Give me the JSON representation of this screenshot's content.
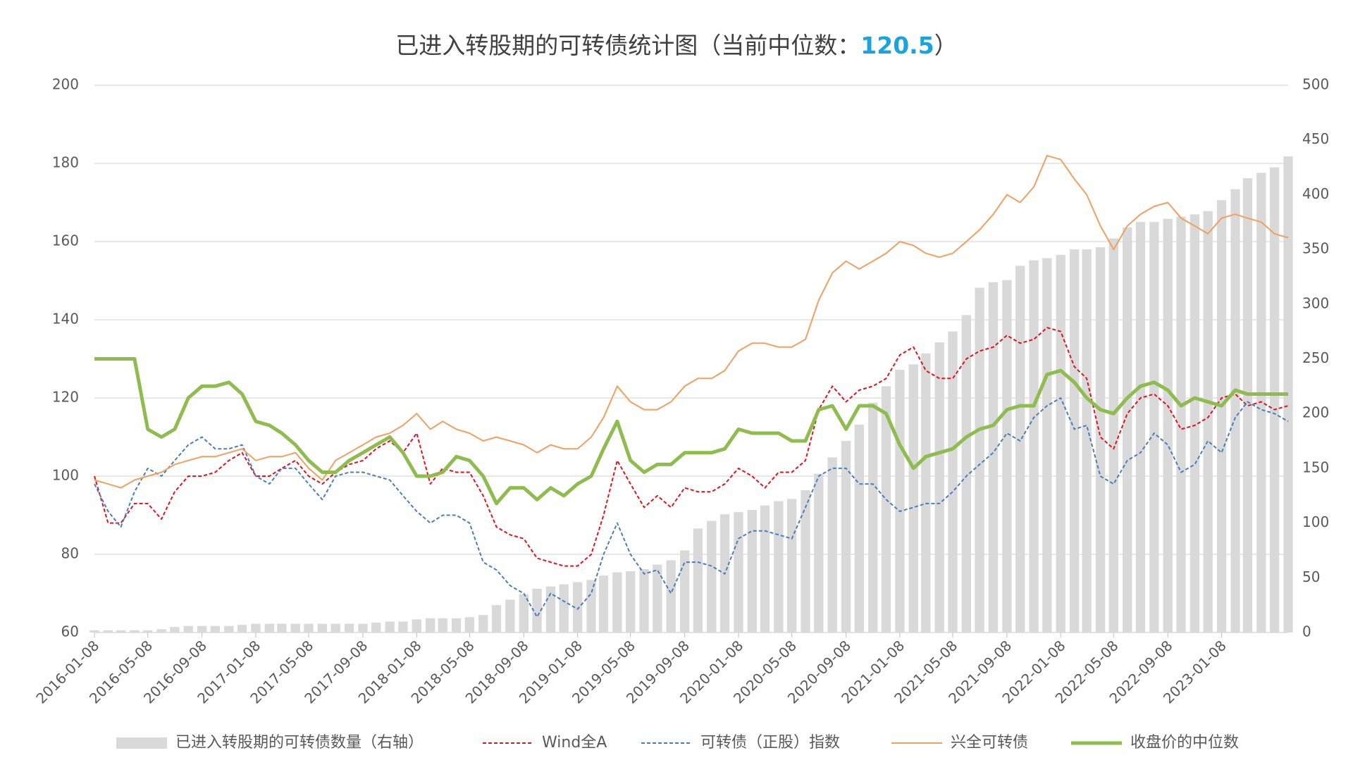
{
  "chart_data": {
    "type": "line",
    "title": "已进入转股期的可转债统计图（当前中位数：",
    "title_value": 120.5,
    "title_end": "）",
    "title_value_color": "#1aa3e0",
    "x": [
      "2016-01-08",
      "2016-02-08",
      "2016-03-08",
      "2016-04-08",
      "2016-05-08",
      "2016-06-08",
      "2016-07-08",
      "2016-08-08",
      "2016-09-08",
      "2016-10-08",
      "2016-11-08",
      "2016-12-08",
      "2017-01-08",
      "2017-02-08",
      "2017-03-08",
      "2017-04-08",
      "2017-05-08",
      "2017-06-08",
      "2017-07-08",
      "2017-08-08",
      "2017-09-08",
      "2017-10-08",
      "2017-11-08",
      "2017-12-08",
      "2018-01-08",
      "2018-02-08",
      "2018-03-08",
      "2018-04-08",
      "2018-05-08",
      "2018-06-08",
      "2018-07-08",
      "2018-08-08",
      "2018-09-08",
      "2018-10-08",
      "2018-11-08",
      "2018-12-08",
      "2019-01-08",
      "2019-02-08",
      "2019-03-08",
      "2019-04-08",
      "2019-05-08",
      "2019-06-08",
      "2019-07-08",
      "2019-08-08",
      "2019-09-08",
      "2019-10-08",
      "2019-11-08",
      "2019-12-08",
      "2020-01-08",
      "2020-02-08",
      "2020-03-08",
      "2020-04-08",
      "2020-05-08",
      "2020-06-08",
      "2020-07-08",
      "2020-08-08",
      "2020-09-08",
      "2020-10-08",
      "2020-11-08",
      "2020-12-08",
      "2021-01-08",
      "2021-02-08",
      "2021-03-08",
      "2021-04-08",
      "2021-05-08",
      "2021-06-08",
      "2021-07-08",
      "2021-08-08",
      "2021-09-08",
      "2021-10-08",
      "2021-11-08",
      "2021-12-08",
      "2022-01-08",
      "2022-02-08",
      "2022-03-08",
      "2022-04-08",
      "2022-05-08",
      "2022-06-08",
      "2022-07-08",
      "2022-08-08",
      "2022-09-08",
      "2022-10-08",
      "2022-11-08",
      "2022-12-08",
      "2023-01-08",
      "2023-02-08",
      "2023-03-08",
      "2023-04-08",
      "2023-05-08",
      "2023-06-08"
    ],
    "xlim": [
      "2016-01-08",
      "2023-06-08"
    ],
    "xticks": [
      "2016-01-08",
      "2016-05-08",
      "2016-09-08",
      "2017-01-08",
      "2017-05-08",
      "2017-09-08",
      "2018-01-08",
      "2018-05-08",
      "2018-09-08",
      "2019-01-08",
      "2019-05-08",
      "2019-09-08",
      "2020-01-08",
      "2020-05-08",
      "2020-09-08",
      "2021-01-08",
      "2021-05-08",
      "2021-09-08",
      "2022-01-08",
      "2022-05-08",
      "2022-09-08",
      "2023-01-08"
    ],
    "ylim": [
      60,
      200
    ],
    "yticks": [
      60,
      80,
      100,
      120,
      140,
      160,
      180,
      200
    ],
    "y2lim": [
      0,
      500
    ],
    "y2ticks": [
      0,
      50,
      100,
      150,
      200,
      250,
      300,
      350,
      400,
      450,
      500
    ],
    "grid": true,
    "legend": "bottom",
    "series": [
      {
        "name": "已进入转股期的可转债数量（右轴）",
        "type": "bar",
        "axis": "y2",
        "color": "#d9d9d9",
        "values": [
          2,
          2,
          2,
          2,
          2,
          3,
          5,
          6,
          6,
          6,
          6,
          7,
          8,
          8,
          8,
          8,
          8,
          8,
          8,
          8,
          8,
          9,
          10,
          10,
          12,
          13,
          13,
          13,
          14,
          16,
          25,
          30,
          35,
          40,
          42,
          44,
          46,
          48,
          52,
          55,
          56,
          58,
          62,
          66,
          75,
          95,
          102,
          108,
          110,
          112,
          116,
          120,
          122,
          130,
          145,
          160,
          175,
          190,
          210,
          225,
          240,
          245,
          255,
          265,
          275,
          290,
          315,
          320,
          322,
          335,
          340,
          342,
          345,
          350,
          350,
          352,
          360,
          370,
          375,
          375,
          378,
          380,
          382,
          385,
          395,
          405,
          415,
          420,
          425,
          435
        ]
      },
      {
        "name": "Wind全A",
        "type": "line",
        "color": "#e0141e",
        "dashed": true,
        "line_width": 2,
        "values": [
          100,
          88,
          88,
          93,
          93,
          89,
          96,
          100,
          100,
          101,
          104,
          106,
          100,
          100,
          102,
          104,
          100,
          98,
          101,
          103,
          104,
          107,
          109,
          106,
          111,
          98,
          102,
          101,
          101,
          95,
          87,
          85,
          84,
          79,
          78,
          77,
          77,
          80,
          90,
          104,
          98,
          92,
          95,
          92,
          97,
          96,
          96,
          98,
          102,
          100,
          97,
          101,
          101,
          104,
          117,
          123,
          119,
          122,
          123,
          125,
          131,
          133,
          127,
          125,
          125,
          130,
          132,
          133,
          136,
          134,
          135,
          138,
          137,
          128,
          125,
          110,
          107,
          116,
          120,
          121,
          118,
          112,
          113,
          115,
          120,
          121,
          118,
          119,
          117,
          118
        ]
      },
      {
        "name": "可转债（正股）指数",
        "type": "line",
        "color": "#4a7ebb",
        "dashed": true,
        "line_width": 2,
        "values": [
          98,
          91,
          87,
          96,
          102,
          100,
          104,
          108,
          110,
          107,
          107,
          108,
          100,
          98,
          102,
          102,
          98,
          94,
          100,
          101,
          101,
          100,
          99,
          95,
          91,
          88,
          90,
          90,
          88,
          78,
          76,
          72,
          70,
          64,
          70,
          68,
          66,
          70,
          80,
          88,
          80,
          75,
          76,
          70,
          78,
          78,
          77,
          75,
          84,
          86,
          86,
          85,
          84,
          92,
          100,
          102,
          102,
          98,
          98,
          94,
          91,
          92,
          93,
          93,
          96,
          100,
          103,
          106,
          111,
          109,
          115,
          118,
          120,
          112,
          113,
          100,
          98,
          104,
          106,
          111,
          108,
          101,
          103,
          109,
          106,
          115,
          119,
          117,
          116,
          114
        ]
      },
      {
        "name": "兴全可转债",
        "type": "line",
        "color": "#f0a060",
        "dashed": false,
        "line_width": 2,
        "values": [
          99,
          98,
          97,
          99,
          100,
          101,
          103,
          104,
          105,
          105,
          106,
          107,
          104,
          105,
          105,
          106,
          102,
          99,
          104,
          106,
          108,
          110,
          111,
          113,
          116,
          112,
          114,
          112,
          111,
          109,
          110,
          109,
          108,
          106,
          108,
          107,
          107,
          110,
          115,
          123,
          119,
          117,
          117,
          119,
          123,
          125,
          125,
          127,
          132,
          134,
          134,
          133,
          133,
          135,
          145,
          152,
          155,
          153,
          155,
          157,
          160,
          159,
          157,
          156,
          157,
          160,
          163,
          167,
          172,
          170,
          174,
          182,
          181,
          176,
          172,
          164,
          158,
          164,
          167,
          169,
          170,
          166,
          164,
          162,
          166,
          167,
          166,
          165,
          162,
          161
        ]
      },
      {
        "name": "收盘价的中位数",
        "type": "line",
        "color": "#8fbc4f",
        "dashed": false,
        "line_width": 5,
        "values": [
          130,
          130,
          130,
          130,
          112,
          110,
          112,
          120,
          123,
          123,
          124,
          121,
          114,
          113,
          111,
          108,
          104,
          101,
          101,
          104,
          106,
          108,
          110,
          106,
          100,
          100,
          101,
          105,
          104,
          100,
          93,
          97,
          97,
          94,
          97,
          95,
          98,
          100,
          107,
          114,
          104,
          101,
          103,
          103,
          106,
          106,
          106,
          107,
          112,
          111,
          111,
          111,
          109,
          109,
          117,
          118,
          112,
          118,
          118,
          116,
          108,
          102,
          105,
          106,
          107,
          110,
          112,
          113,
          117,
          118,
          118,
          126,
          127,
          124,
          120,
          117,
          116,
          120,
          123,
          124,
          122,
          118,
          120,
          119,
          118,
          122,
          121,
          121,
          121,
          121
        ]
      }
    ]
  }
}
